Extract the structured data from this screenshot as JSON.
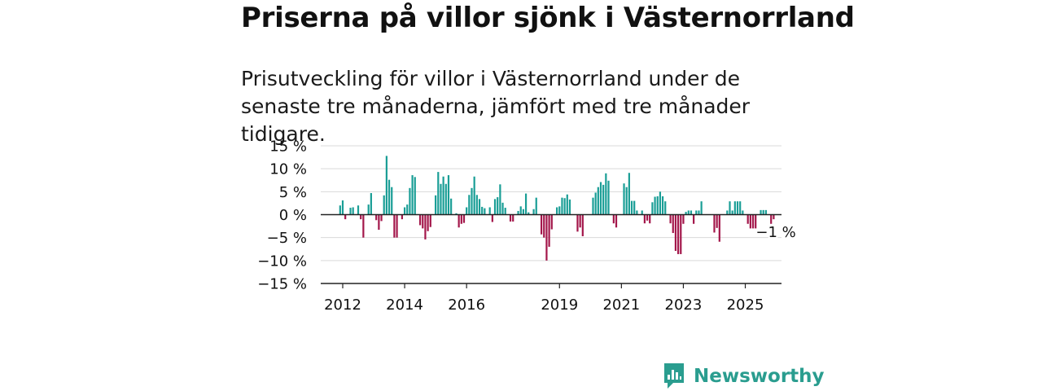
{
  "title": "Priserna på villor sjönk i Västernorrland",
  "subtitle": "Prisutveckling för villor i Västernorrland under de senaste tre månaderna, jämfört med tre månader tidigare.",
  "brand": {
    "name": "Newsworthy",
    "icon": "newsworthy-bar-chart-logo-icon"
  },
  "colors": {
    "positive": "#1a9e96",
    "negative": "#a3164a",
    "grid": "#d9d9d9",
    "axis": "#222222",
    "brand": "#2a9d8f"
  },
  "chart_data": {
    "type": "bar",
    "title": "",
    "xlabel": "",
    "ylabel": "",
    "ylim": [
      -15,
      15
    ],
    "y_ticks": [
      15,
      10,
      5,
      0,
      -5,
      -10,
      -15
    ],
    "y_tick_labels": [
      "15 %",
      "10 %",
      "5 %",
      "0 %",
      "−5 %",
      "−10 %",
      "−15 %"
    ],
    "x_ticks": [
      2012,
      2014,
      2016,
      2019,
      2021,
      2023,
      2025
    ],
    "x_tick_labels": [
      "2012",
      "2014",
      "2016",
      "2019",
      "2021",
      "2023",
      "2025"
    ],
    "x_start": "2011-12",
    "period": "monthly",
    "grid": true,
    "last_value_label": "−1 %",
    "values": [
      2.0,
      3.1,
      -1.0,
      0,
      1.5,
      1.6,
      0,
      2.0,
      -1.0,
      -5.0,
      0,
      2.2,
      4.7,
      0,
      -1.2,
      -3.3,
      -1.4,
      4.2,
      12.8,
      7.6,
      6.0,
      -5.0,
      -5.0,
      0,
      -1.0,
      1.6,
      2.2,
      5.8,
      8.6,
      8.2,
      0,
      -2.3,
      -3.0,
      -5.4,
      -3.6,
      -2.7,
      0,
      4.2,
      9.3,
      6.7,
      8.3,
      6.7,
      8.6,
      3.5,
      0,
      0.3,
      -2.8,
      -2.0,
      -1.8,
      1.6,
      4.3,
      5.8,
      8.3,
      4.3,
      3.4,
      1.7,
      1.4,
      0,
      1.6,
      -1.6,
      3.4,
      3.8,
      6.6,
      2.6,
      1.5,
      0,
      -1.5,
      -1.5,
      0,
      0.8,
      1.8,
      1.2,
      4.6,
      0.5,
      0,
      1.2,
      3.7,
      0,
      -4.3,
      -5.0,
      -10.0,
      -7.0,
      -3.2,
      0,
      1.6,
      1.8,
      3.7,
      3.6,
      4.4,
      3.3,
      0,
      0,
      -3.7,
      -2.8,
      -4.7,
      0,
      0,
      0,
      3.7,
      4.8,
      6.0,
      7.1,
      6.5,
      9.0,
      7.4,
      0,
      -1.9,
      -2.8,
      0,
      0,
      6.8,
      6.0,
      9.1,
      3.0,
      3.0,
      0.9,
      0,
      0.9,
      -1.9,
      -1.3,
      -1.9,
      2.7,
      3.9,
      4.0,
      5.0,
      4.0,
      2.9,
      0,
      -1.9,
      -4.0,
      -7.9,
      -8.6,
      -8.6,
      -2.0,
      0.6,
      0.9,
      0.9,
      -2.0,
      0.9,
      0.9,
      2.9,
      0,
      0,
      0,
      0,
      -3.9,
      -2.9,
      -5.9,
      0,
      0,
      0.9,
      2.9,
      0.9,
      2.9,
      2.9,
      2.9,
      0.9,
      0,
      -2.0,
      -3.0,
      -3.0,
      -3.0,
      0,
      1.0,
      1.0,
      1.0,
      0,
      -2.0,
      -1.0
    ]
  }
}
